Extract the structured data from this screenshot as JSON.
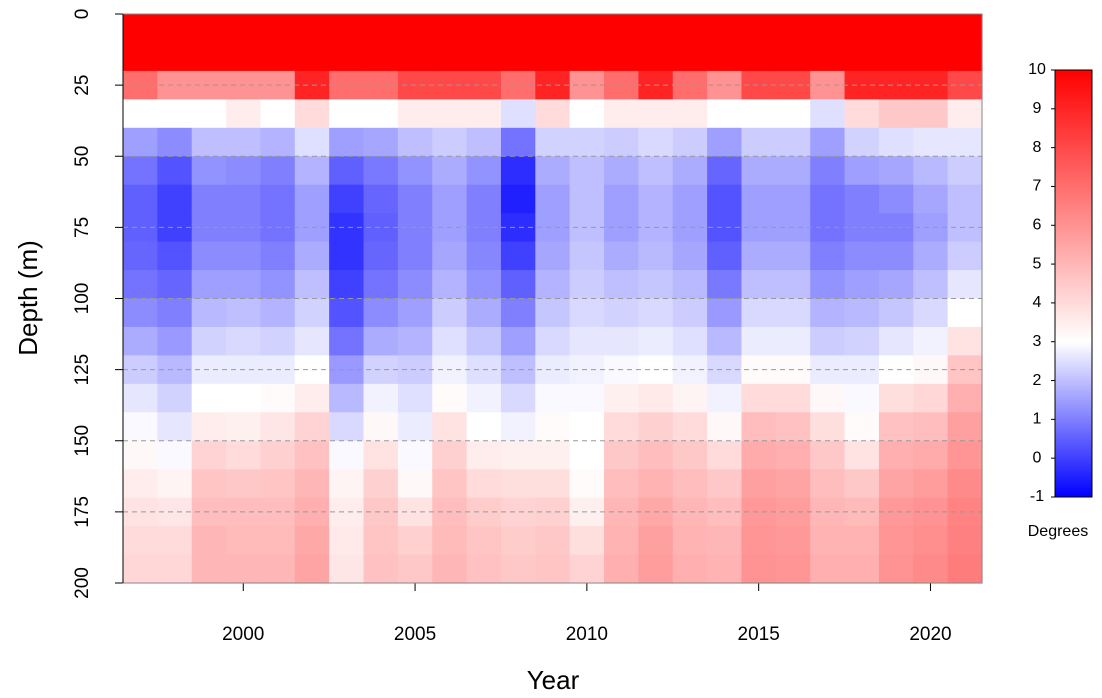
{
  "chart_data": {
    "type": "heatmap",
    "x_label": "Year",
    "y_label": "Depth (m)",
    "x": [
      1997,
      1998,
      1999,
      2000,
      2001,
      2002,
      2003,
      2004,
      2005,
      2006,
      2007,
      2008,
      2009,
      2010,
      2011,
      2012,
      2013,
      2014,
      2015,
      2016,
      2017,
      2018,
      2019,
      2020,
      2021
    ],
    "y": [
      5,
      15,
      25,
      35,
      45,
      55,
      65,
      75,
      85,
      95,
      105,
      115,
      125,
      135,
      145,
      155,
      165,
      175,
      185,
      195
    ],
    "values": [
      [
        10,
        10,
        7,
        3,
        1.5,
        0.8,
        0.5,
        0.5,
        0.6,
        0.8,
        1.2,
        1.7,
        2.2,
        2.6,
        2.9,
        3.2,
        3.5,
        3.8,
        4,
        4.1
      ],
      [
        10,
        10,
        6,
        3,
        1.2,
        0.3,
        0,
        0,
        0.3,
        0.6,
        1,
        1.4,
        1.9,
        2.3,
        2.6,
        2.9,
        3.3,
        3.7,
        4,
        4.1
      ],
      [
        10,
        10,
        6,
        3,
        2,
        1.3,
        1,
        1,
        1.2,
        1.5,
        1.9,
        2.3,
        2.7,
        3,
        3.5,
        4.2,
        4.6,
        4.8,
        5,
        5
      ],
      [
        10,
        10,
        6,
        3.5,
        2,
        1.2,
        1,
        1,
        1.2,
        1.5,
        2,
        2.4,
        2.7,
        3,
        3.4,
        4,
        4.5,
        4.8,
        4.9,
        5
      ],
      [
        10,
        10,
        6,
        3,
        1.8,
        1,
        0.8,
        0.8,
        1,
        1.3,
        1.8,
        2.3,
        2.7,
        3.1,
        3.7,
        4.3,
        4.6,
        4.8,
        4.9,
        5
      ],
      [
        10,
        10,
        9,
        4,
        2.5,
        1.8,
        1.5,
        1.5,
        1.7,
        2,
        2.3,
        2.6,
        3,
        3.5,
        4.2,
        4.7,
        5,
        5.2,
        5.4,
        5.5
      ],
      [
        10,
        10,
        7,
        3,
        1.5,
        0.5,
        0,
        -0.2,
        -0.2,
        0,
        0.3,
        0.8,
        1.4,
        1.9,
        2.4,
        2.9,
        3.3,
        3.5,
        3.6,
        3.7
      ],
      [
        10,
        10,
        7,
        3,
        1.6,
        0.9,
        0.6,
        0.5,
        0.6,
        0.8,
        1.2,
        1.7,
        2.3,
        2.8,
        3.2,
        3.8,
        4.3,
        4.5,
        4.6,
        4.7
      ],
      [
        10,
        10,
        8,
        3.5,
        2,
        1.3,
        1,
        1,
        1,
        1.2,
        1.5,
        1.8,
        2.2,
        2.5,
        2.7,
        2.9,
        3.2,
        3.8,
        4.3,
        4.5
      ],
      [
        10,
        10,
        8,
        3.5,
        2.2,
        1.7,
        1.5,
        1.5,
        1.6,
        1.8,
        2.2,
        2.5,
        2.8,
        3.1,
        3.8,
        4.3,
        4.6,
        4.8,
        4.9,
        5
      ],
      [
        10,
        10,
        8,
        3.5,
        2,
        1.3,
        1,
        1,
        1.1,
        1.3,
        1.7,
        2.1,
        2.5,
        2.8,
        3,
        3.5,
        4,
        4.4,
        4.6,
        4.7
      ],
      [
        10,
        10,
        7,
        2.5,
        0.8,
        -0.3,
        -0.5,
        -0.3,
        0,
        0.5,
        1,
        1.5,
        2,
        2.4,
        2.8,
        3.4,
        3.9,
        4.2,
        4.4,
        4.5
      ],
      [
        10,
        10,
        9,
        4,
        2.3,
        1.7,
        1.5,
        1.5,
        1.6,
        1.8,
        2.1,
        2.4,
        2.7,
        2.9,
        3.1,
        3.4,
        3.9,
        4.3,
        4.5,
        4.6
      ],
      [
        10,
        10,
        6,
        3,
        2.3,
        2,
        2,
        2,
        2.1,
        2.2,
        2.4,
        2.6,
        2.8,
        2.9,
        3,
        3,
        3.1,
        3.4,
        3.9,
        4.2
      ],
      [
        10,
        10,
        7,
        3.5,
        2.2,
        1.7,
        1.5,
        1.5,
        1.7,
        2,
        2.3,
        2.6,
        2.9,
        3.4,
        4,
        4.5,
        4.8,
        5,
        5.1,
        5.2
      ],
      [
        10,
        10,
        9,
        3.5,
        2.4,
        2,
        1.8,
        1.8,
        1.9,
        2.1,
        2.4,
        2.7,
        3,
        3.6,
        4.3,
        4.8,
        5.1,
        5.4,
        5.6,
        5.7
      ],
      [
        10,
        10,
        7,
        3.5,
        2.2,
        1.7,
        1.5,
        1.5,
        1.6,
        1.9,
        2.2,
        2.5,
        2.8,
        3.3,
        4,
        4.5,
        4.8,
        5,
        5.1,
        5.2
      ],
      [
        10,
        10,
        6,
        3,
        1.5,
        0.6,
        0.3,
        0.3,
        0.5,
        0.9,
        1.4,
        1.9,
        2.4,
        2.8,
        3.2,
        4,
        4.5,
        4.8,
        5,
        5.1
      ],
      [
        10,
        10,
        8,
        3,
        2.2,
        1.7,
        1.5,
        1.5,
        1.7,
        2,
        2.4,
        2.7,
        3.1,
        4,
        4.8,
        5.3,
        5.6,
        5.8,
        5.9,
        6
      ],
      [
        10,
        10,
        8,
        3,
        2.2,
        1.7,
        1.5,
        1.5,
        1.7,
        2,
        2.4,
        2.7,
        3.1,
        4,
        4.7,
        5.2,
        5.5,
        5.7,
        5.8,
        5.9
      ],
      [
        10,
        10,
        6,
        2.5,
        1.5,
        1,
        0.8,
        0.8,
        1,
        1.3,
        1.8,
        2.2,
        2.7,
        3.2,
        3.9,
        4.5,
        4.8,
        5,
        5.1,
        5.2
      ],
      [
        10,
        10,
        9,
        4,
        2.3,
        1.5,
        1,
        1,
        1.2,
        1.5,
        1.9,
        2.3,
        2.7,
        2.9,
        3.1,
        3.8,
        4.5,
        4.9,
        5.1,
        5.2
      ],
      [
        10,
        10,
        9,
        4.5,
        2.5,
        1.6,
        1.2,
        1,
        1.2,
        1.6,
        2.1,
        2.6,
        3,
        3.9,
        4.7,
        5.2,
        5.5,
        5.8,
        5.9,
        6
      ],
      [
        10,
        10,
        9,
        4.5,
        2.6,
        1.9,
        1.6,
        1.5,
        1.7,
        2,
        2.4,
        2.8,
        3.2,
        4.1,
        4.8,
        5.3,
        5.7,
        6,
        6.1,
        6.2
      ],
      [
        10,
        10,
        8,
        3.5,
        2.6,
        2.2,
        2,
        2,
        2.2,
        2.6,
        3,
        3.8,
        4.6,
        5.2,
        5.6,
        5.9,
        6.2,
        6.4,
        6.5,
        6.6
      ]
    ],
    "xlim": [
      1996.5,
      2021.5
    ],
    "xticks": [
      2000,
      2005,
      2010,
      2015,
      2020
    ],
    "ylim": [
      0,
      200
    ],
    "yticks": [
      0,
      25,
      50,
      75,
      100,
      125,
      150,
      175,
      200
    ],
    "y_reversed": true,
    "grid": true,
    "colorbar": {
      "title": "Degrees",
      "lim": [
        -1,
        10
      ],
      "ticks": [
        -1,
        0,
        1,
        2,
        3,
        4,
        5,
        6,
        7,
        8,
        9,
        10
      ],
      "stops": [
        {
          "value": -1,
          "color": "#0000ff"
        },
        {
          "value": 3,
          "color": "#ffffff"
        },
        {
          "value": 10,
          "color": "#ff0000"
        }
      ]
    }
  }
}
